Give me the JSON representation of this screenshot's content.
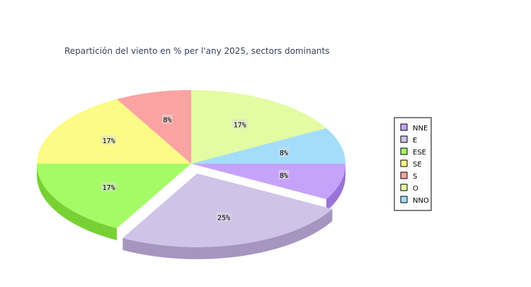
{
  "chart_data": {
    "type": "pie",
    "title": "Repartición del viento en % per l'any 2025, sectors dominants",
    "categories": [
      "NNE",
      "E",
      "ESE",
      "SE",
      "S",
      "O",
      "NNO"
    ],
    "values": [
      8,
      25,
      17,
      17,
      8,
      17,
      8
    ],
    "labels": [
      "8%",
      "25%",
      "17%",
      "17%",
      "8%",
      "17%",
      "8%"
    ],
    "colors": [
      "#c6a3fb",
      "#d0c3e8",
      "#a5fb66",
      "#fbfb86",
      "#fba3a3",
      "#e3fba3",
      "#a3ddfb"
    ],
    "side_colors": [
      "#9a73d8",
      "#a595bf",
      "#77d135",
      "#cfcf55",
      "#cf7373",
      "#b7cf73",
      "#73afcf"
    ],
    "exploded": [
      "E"
    ],
    "legend_position": "right"
  }
}
